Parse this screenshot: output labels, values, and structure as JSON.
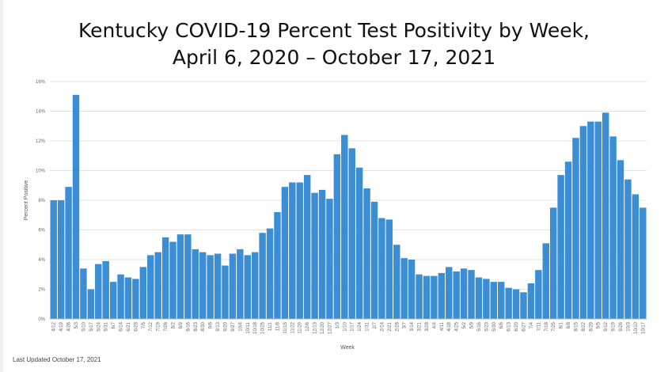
{
  "title": {
    "line1": "Kentucky COVID-19 Percent Test Positivity by Week,",
    "line2": "April 6, 2020 – October 17, 2021"
  },
  "footer": "Last Updated October 17, 2021",
  "chart_data": {
    "type": "bar",
    "title": "Kentucky COVID-19 Percent Test Positivity by Week, April 6, 2020 – October 17, 2021",
    "xlabel": "Week",
    "ylabel": "Percent Positive",
    "ylim": [
      0,
      16
    ],
    "yticks": [
      "0%",
      "2%",
      "4%",
      "6%",
      "8%",
      "10%",
      "12%",
      "14%",
      "16%"
    ],
    "grid": true,
    "color": "#3b8dd4",
    "categories": [
      "4/12",
      "4/19",
      "4/26",
      "5/3",
      "5/10",
      "5/17",
      "5/24",
      "5/31",
      "6/7",
      "6/14",
      "6/21",
      "6/28",
      "7/5",
      "7/12",
      "7/19",
      "7/26",
      "8/2",
      "8/9",
      "8/16",
      "8/23",
      "8/30",
      "9/6",
      "9/13",
      "9/20",
      "9/27",
      "10/4",
      "10/11",
      "10/18",
      "10/25",
      "11/1",
      "11/8",
      "11/15",
      "11/22",
      "11/29",
      "12/6",
      "12/13",
      "12/20",
      "12/27",
      "1/3",
      "1/10",
      "1/17",
      "1/24",
      "1/31",
      "2/7",
      "2/14",
      "2/21",
      "2/28",
      "3/7",
      "3/14",
      "3/21",
      "3/28",
      "4/4",
      "4/11",
      "4/18",
      "4/25",
      "5/2",
      "5/9",
      "5/16",
      "5/23",
      "5/30",
      "6/6",
      "6/13",
      "6/20",
      "6/27",
      "7/4",
      "7/11",
      "7/18",
      "7/25",
      "8/1",
      "8/8",
      "8/15",
      "8/22",
      "8/29",
      "9/5",
      "9/12",
      "9/19",
      "9/26",
      "10/3",
      "10/10",
      "10/17"
    ],
    "values": [
      8.0,
      8.0,
      8.9,
      15.1,
      3.4,
      2.0,
      3.7,
      3.9,
      2.5,
      3.0,
      2.8,
      2.7,
      3.5,
      4.3,
      4.5,
      5.5,
      5.2,
      5.7,
      5.7,
      4.7,
      4.5,
      4.3,
      4.4,
      3.6,
      4.4,
      4.7,
      4.3,
      4.5,
      5.8,
      6.1,
      7.2,
      8.9,
      9.2,
      9.2,
      9.7,
      8.5,
      8.7,
      8.1,
      11.1,
      12.4,
      11.5,
      10.2,
      8.8,
      7.9,
      6.8,
      6.7,
      5.0,
      4.1,
      4.0,
      3.0,
      2.9,
      2.9,
      3.1,
      3.5,
      3.2,
      3.4,
      3.3,
      2.8,
      2.7,
      2.5,
      2.5,
      2.1,
      2.0,
      1.8,
      2.4,
      3.3,
      5.1,
      7.5,
      9.7,
      10.6,
      12.2,
      13.0,
      13.3,
      13.3,
      13.9,
      12.3,
      10.7,
      9.4,
      8.4,
      7.5
    ]
  }
}
